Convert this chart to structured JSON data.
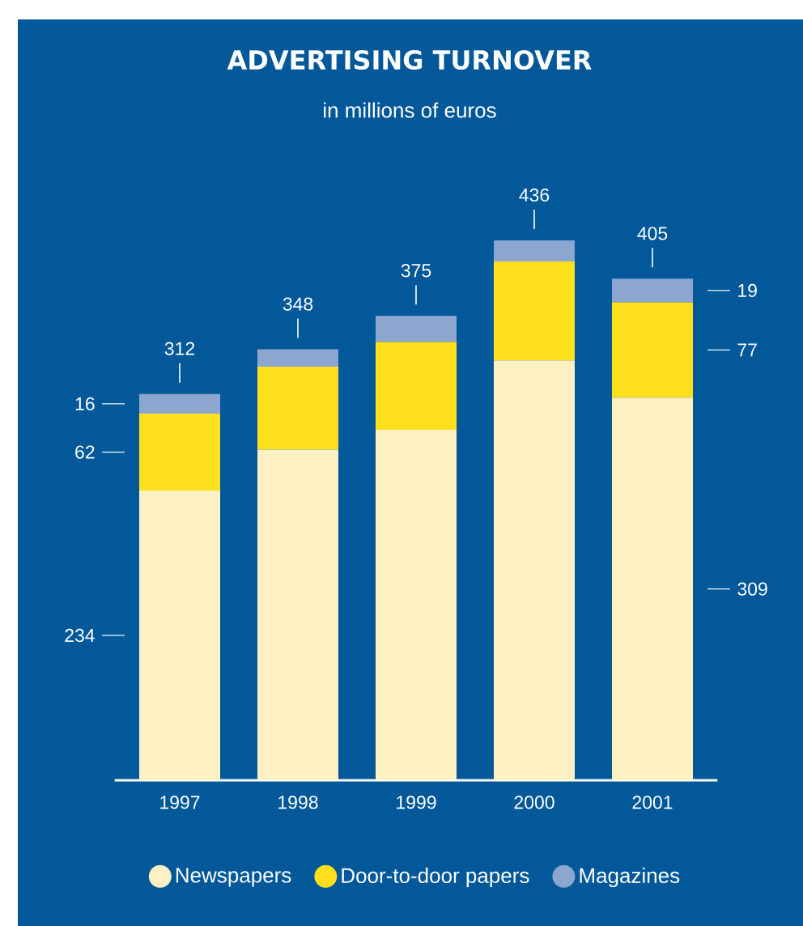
{
  "chart_data": {
    "type": "bar",
    "title": "ADVERTISING TURNOVER",
    "subtitle": "in millions of euros",
    "categories": [
      "1997",
      "1998",
      "1999",
      "2000",
      "2001"
    ],
    "stacked": true,
    "legend": "bottom",
    "totals": [
      "312",
      "348",
      "375",
      "436",
      "405"
    ],
    "series": [
      {
        "name": "Newspapers",
        "color": "#fdf0c2",
        "values": [
          234,
          267,
          283,
          339,
          309
        ],
        "value_labels": [
          "234",
          null,
          null,
          null,
          "309"
        ]
      },
      {
        "name": "Door-to-door papers",
        "color": "#fddf1c",
        "values": [
          62,
          67,
          71,
          80,
          77
        ],
        "value_labels": [
          "62",
          null,
          null,
          null,
          "77"
        ]
      },
      {
        "name": "Magazines",
        "color": "#8ca6cf",
        "values": [
          16,
          14,
          21,
          17,
          19
        ],
        "value_labels": [
          "16",
          null,
          null,
          null,
          "19"
        ]
      }
    ]
  }
}
